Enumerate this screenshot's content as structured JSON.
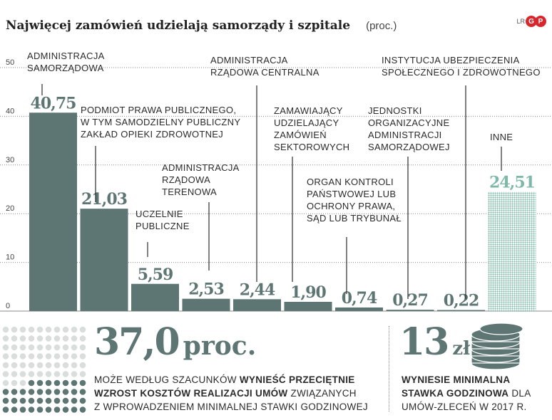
{
  "header": {
    "title": "Najwięcej zamówień udzielają samorządy i szpitale",
    "unit": "(proc.)",
    "logo_small": "LR",
    "logo_letters": [
      "G",
      "P"
    ]
  },
  "chart_data": {
    "type": "bar",
    "ylim": [
      0,
      50
    ],
    "yticks": [
      "50",
      "40",
      "30",
      "20",
      "10",
      "0"
    ],
    "grid": true,
    "colors": {
      "bar": "#5e7673",
      "last_bar": "#7fb8a8",
      "value": "#5e7673",
      "grid": "#8a8a8a"
    },
    "categories": [
      [
        "ADMINISTRACJA",
        "SAMORZĄDOWA"
      ],
      [
        "PODMIOT PRAWA PUBLICZNEGO,",
        "W TYM SAMODZIELNY PUBLICZNY",
        "ZAKŁAD OPIEKI ZDROWOTNEJ"
      ],
      [
        "UCZELNIE",
        "PUBLICZNE"
      ],
      [
        "ADMINISTRACJA",
        "RZĄDOWA",
        "TERENOWA"
      ],
      [
        "ADMINISTRACJA",
        "RZĄDOWA CENTRALNA"
      ],
      [
        "ZAMAWIAJĄCY",
        "UDZIELAJĄCY",
        "ZAMÓWIEŃ",
        "SEKTOROWYCH"
      ],
      [
        "ORGAN KONTROLI",
        "PAŃSTWOWEJ LUB",
        "OCHRONY PRAWA,",
        "SĄD LUB TRYBUNAŁ"
      ],
      [
        "JEDNOSTKI",
        "ORGANIZACYJNE",
        "ADMINISTRACJI",
        "SAMORZĄDOWEJ"
      ],
      [
        "INSTYTUCJA UBEZPIECZENIA",
        "SPOŁECZNEGO I ZDROWOTNEGO"
      ],
      [
        "INNE"
      ]
    ],
    "values": [
      40.75,
      21.03,
      5.59,
      2.53,
      2.44,
      1.9,
      0.74,
      0.27,
      0.22,
      24.51
    ],
    "value_labels": [
      "40,75",
      "21,03",
      "5,59",
      "2,53",
      "2,44",
      "1,90",
      "0,74",
      "0,27",
      "0,22",
      "24,51"
    ]
  },
  "stat_left": {
    "value": "37,0",
    "unit": "proc.",
    "line1_normal": "MOŻE WEDŁUG SZACUNKÓW",
    "line1_bold": "WYNIEŚĆ PRZECIĘTNIE",
    "line2_bold": "WZROST KOSZTÓW REALIZACJI UMÓW",
    "line2_normal": "ZWIĄZANYCH",
    "line3_normal": "Z WPROWADZENIEM MINIMALNEJ STAWKI GODZINOWEJ"
  },
  "stat_right": {
    "value": "13",
    "unit": "zł",
    "line1_bold": "WYNIESIE MINIMALNA",
    "line2_bold": "STAWKA GODZINOWA",
    "line2_normal": "DLA",
    "line3_normal": "UMÓW-ZLECEŃ W 2017 R."
  }
}
